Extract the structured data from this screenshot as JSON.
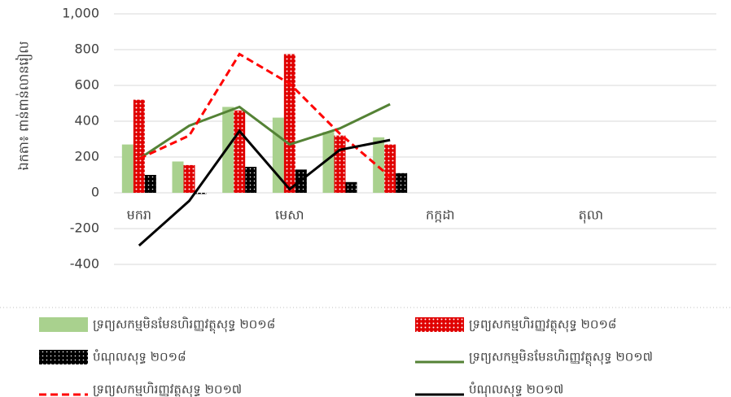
{
  "chart_data": {
    "type": "combo",
    "y_label": "ឯកតា៖ ពាន់ពាន់លានរៀល",
    "categories": [
      "មករា",
      null,
      null,
      "មេសា",
      null,
      null,
      "កក្កដា",
      null,
      null,
      "តុលា",
      null,
      null
    ],
    "ylim": [
      -400,
      1000
    ],
    "yticks": [
      -400,
      -200,
      0,
      200,
      400,
      600,
      800,
      {
        "value": 1000,
        "label": "1,000"
      }
    ],
    "grid": true,
    "legend": "bottom",
    "series": [
      {
        "name": "ទ្រព្យសកម្មមិនមែនហិរញ្ញវត្ថុសុទ្ធ ២០១៨",
        "type": "bar",
        "color": "#a9d18e",
        "values": [
          270,
          175,
          480,
          420,
          340,
          310,
          null,
          null,
          null,
          null,
          null,
          null
        ]
      },
      {
        "name": "ទ្រព្យសកម្មហិរញ្ញវត្ថុសុទ្ធ ២០១៨",
        "type": "bar",
        "color": "#e00000",
        "pattern": "dots",
        "values": [
          520,
          155,
          460,
          775,
          320,
          270,
          null,
          null,
          null,
          null,
          null,
          null
        ]
      },
      {
        "name": "បំណុលសុទ្ធ ២០១៨",
        "type": "bar",
        "color": "#000000",
        "pattern": "dots",
        "values": [
          100,
          -5,
          145,
          130,
          60,
          110,
          null,
          null,
          null,
          null,
          null,
          null
        ]
      },
      {
        "name": "ទ្រព្យសកម្មមិនមែនហិរញ្ញវត្ថុសុទ្ធ ២០១៧",
        "type": "line",
        "color": "#548235",
        "values": [
          190,
          375,
          480,
          270,
          360,
          495,
          null,
          null,
          null,
          null,
          null,
          null
        ]
      },
      {
        "name": "ទ្រព្យសកម្មហិរញ្ញវត្ថុសុទ្ធ ២០១៧",
        "type": "line",
        "color": "#ff0000",
        "dash": true,
        "values": [
          190,
          320,
          775,
          610,
          330,
          90,
          null,
          null,
          null,
          null,
          null,
          null
        ]
      },
      {
        "name": "បំណុលសុទ្ធ ២០១៧",
        "type": "line",
        "color": "#000000",
        "values": [
          -295,
          -45,
          345,
          20,
          240,
          295,
          null,
          null,
          null,
          null,
          null,
          null
        ]
      }
    ]
  }
}
